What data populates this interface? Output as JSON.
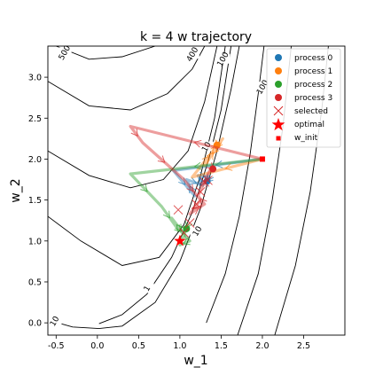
{
  "chart_data": {
    "type": "line",
    "title": "k = 4 w trajectory",
    "xlabel": "w_1",
    "ylabel": "w_2",
    "xlim": [
      -0.6,
      3.0
    ],
    "ylim": [
      -0.15,
      3.38
    ],
    "x_ticks": [
      "-0.5",
      "0.0",
      "0.5",
      "1.0",
      "1.5",
      "2.0",
      "2.5"
    ],
    "x_tick_values": [
      -0.5,
      0.0,
      0.5,
      1.0,
      1.5,
      2.0,
      2.5
    ],
    "y_ticks": [
      "0.0",
      "0.5",
      "1.0",
      "1.5",
      "2.0",
      "2.5",
      "3.0"
    ],
    "y_tick_values": [
      0.0,
      0.5,
      1.0,
      1.5,
      2.0,
      2.5,
      3.0
    ],
    "grid": false,
    "legend_position": "top-right",
    "contour_labels": [
      {
        "text": "500",
        "x": -0.4,
        "y": 3.3
      },
      {
        "text": "400",
        "x": 1.15,
        "y": 3.28
      },
      {
        "text": "100",
        "x": 1.52,
        "y": 3.22
      },
      {
        "text": "100",
        "x": 2.0,
        "y": 2.88
      },
      {
        "text": "10",
        "x": 1.32,
        "y": 2.15
      },
      {
        "text": "10",
        "x": 1.21,
        "y": 1.12
      },
      {
        "text": "1",
        "x": 0.6,
        "y": 0.42
      },
      {
        "text": "10",
        "x": -0.52,
        "y": 0.02
      }
    ],
    "series": [
      {
        "name": "process 0",
        "color": "#1f77b4",
        "x": [
          2.0,
          0.92,
          1.18,
          1.08,
          1.28,
          1.22,
          1.36,
          1.33,
          1.34,
          1.33
        ],
        "y": [
          2.0,
          1.86,
          1.55,
          1.75,
          1.68,
          1.8,
          1.78,
          1.73,
          1.74,
          1.73
        ]
      },
      {
        "name": "process 1",
        "color": "#ff7f0e",
        "x": [
          2.0,
          1.15,
          1.52,
          1.3,
          1.48,
          1.42,
          1.45,
          1.44,
          1.45
        ],
        "y": [
          2.0,
          1.78,
          2.25,
          1.92,
          2.2,
          2.12,
          2.18,
          2.16,
          2.17
        ]
      },
      {
        "name": "process 2",
        "color": "#2ca02c",
        "x": [
          2.0,
          0.4,
          0.78,
          0.95,
          1.05,
          0.9,
          1.12,
          1.0,
          1.1,
          1.08
        ],
        "y": [
          2.0,
          1.82,
          1.42,
          1.18,
          1.08,
          1.28,
          1.0,
          0.95,
          1.2,
          1.15
        ]
      },
      {
        "name": "process 3",
        "color": "#d62728",
        "x": [
          2.0,
          0.4,
          0.55,
          1.05,
          1.25,
          1.12,
          1.3,
          1.22,
          1.38,
          1.4
        ],
        "y": [
          2.0,
          2.4,
          2.2,
          1.75,
          1.5,
          1.33,
          1.45,
          1.55,
          1.9,
          1.88
        ]
      }
    ],
    "selected": {
      "name": "selected",
      "color": "#d62728",
      "x": [
        0.98,
        1.05,
        1.12,
        1.2,
        1.25,
        1.3,
        1.34
      ],
      "y": [
        1.38,
        1.1,
        1.22,
        1.45,
        1.6,
        1.72,
        1.74
      ]
    },
    "optimal": {
      "name": "optimal",
      "color": "#ff0000",
      "x": 1.0,
      "y": 1.0
    },
    "w_init": {
      "name": "w_init",
      "color": "#ff0000",
      "x": 2.0,
      "y": 2.0
    }
  },
  "legend": {
    "items": [
      {
        "label": "process 0",
        "color": "#1f77b4",
        "marker": "circle"
      },
      {
        "label": "process 1",
        "color": "#ff7f0e",
        "marker": "circle"
      },
      {
        "label": "process 2",
        "color": "#2ca02c",
        "marker": "circle"
      },
      {
        "label": "process 3",
        "color": "#d62728",
        "marker": "circle"
      },
      {
        "label": "selected",
        "color": "#d62728",
        "marker": "x"
      },
      {
        "label": "optimal",
        "color": "#ff0000",
        "marker": "star"
      },
      {
        "label": "w_init",
        "color": "#ff0000",
        "marker": "square"
      }
    ]
  }
}
